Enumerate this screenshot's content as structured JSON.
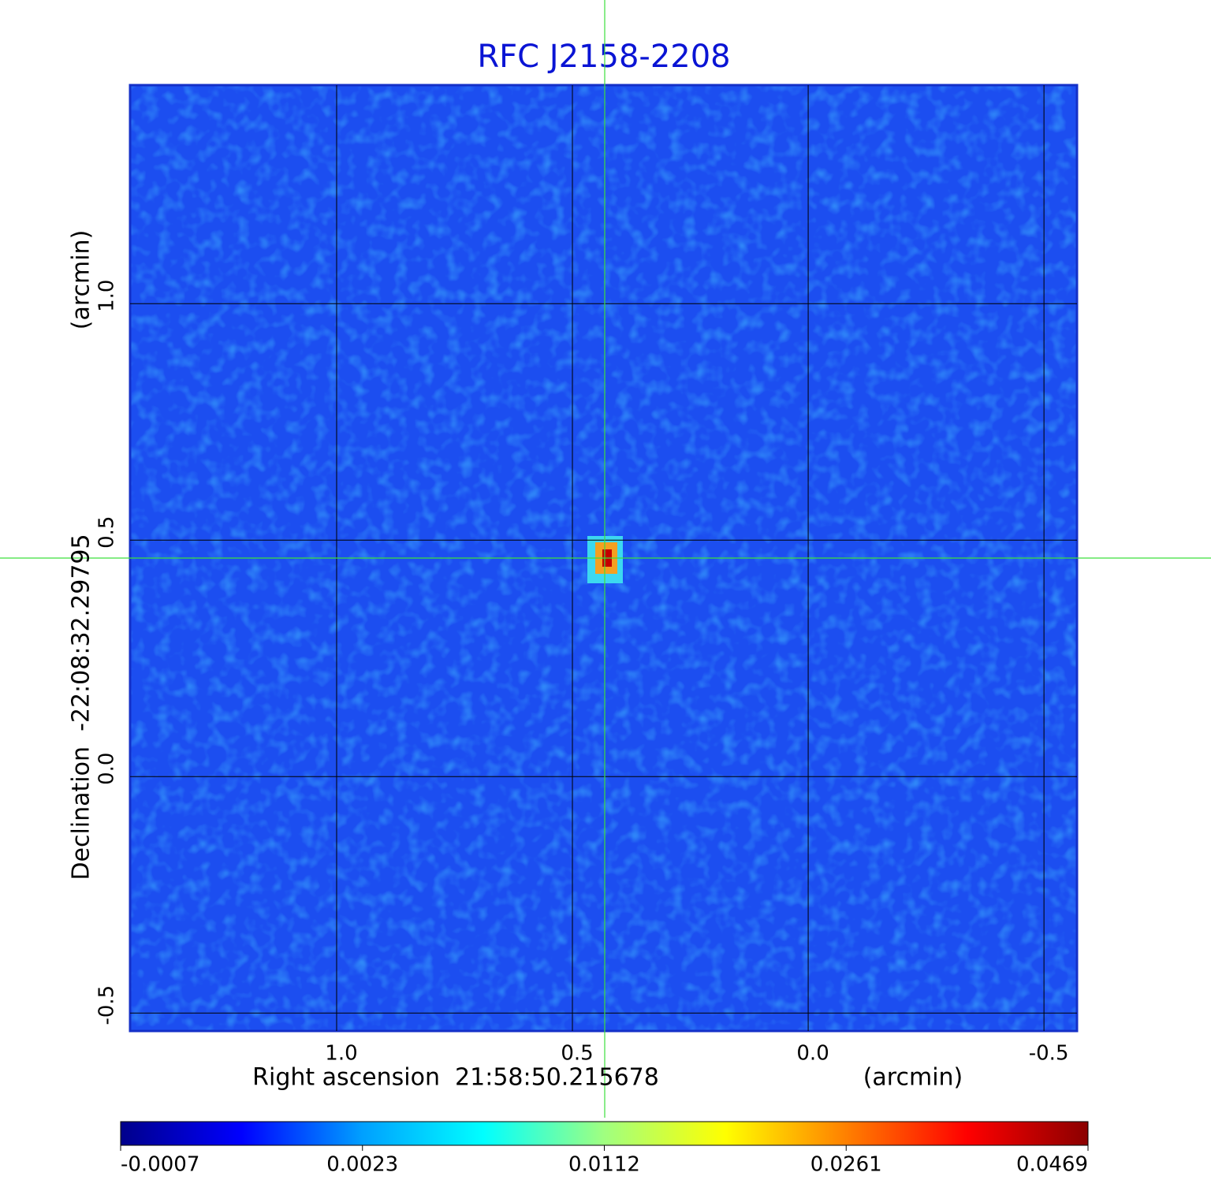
{
  "chart_data": {
    "type": "image",
    "title": "RFC J2158-2208",
    "xlabel": "Right ascension  21:58:50.215678",
    "xunit": "(arcmin)",
    "ylabel": "Declination  -22:08:32.29795",
    "yunit": "(arcmin)",
    "xlim": [
      1.438,
      -0.57
    ],
    "ylim": [
      -0.538,
      1.462
    ],
    "xticks": [
      {
        "value": 1,
        "label": "1.0"
      },
      0.5,
      {
        "value": 0,
        "label": "0.0"
      },
      -0.5
    ],
    "yticks": [
      -0.5,
      {
        "value": 0,
        "label": "0.0"
      },
      0.5,
      {
        "value": 1,
        "label": "1.0"
      }
    ],
    "grid": true,
    "colorbar": {
      "ticks": [
        -0.0007,
        0.0023,
        0.0112,
        0.0261,
        0.0469
      ],
      "colors": [
        "#00008b",
        "#0000ff",
        "#00a0ff",
        "#00ffff",
        "#a0ff80",
        "#ffff00",
        "#ff8000",
        "#ff0000",
        "#8b0000"
      ]
    }
  }
}
